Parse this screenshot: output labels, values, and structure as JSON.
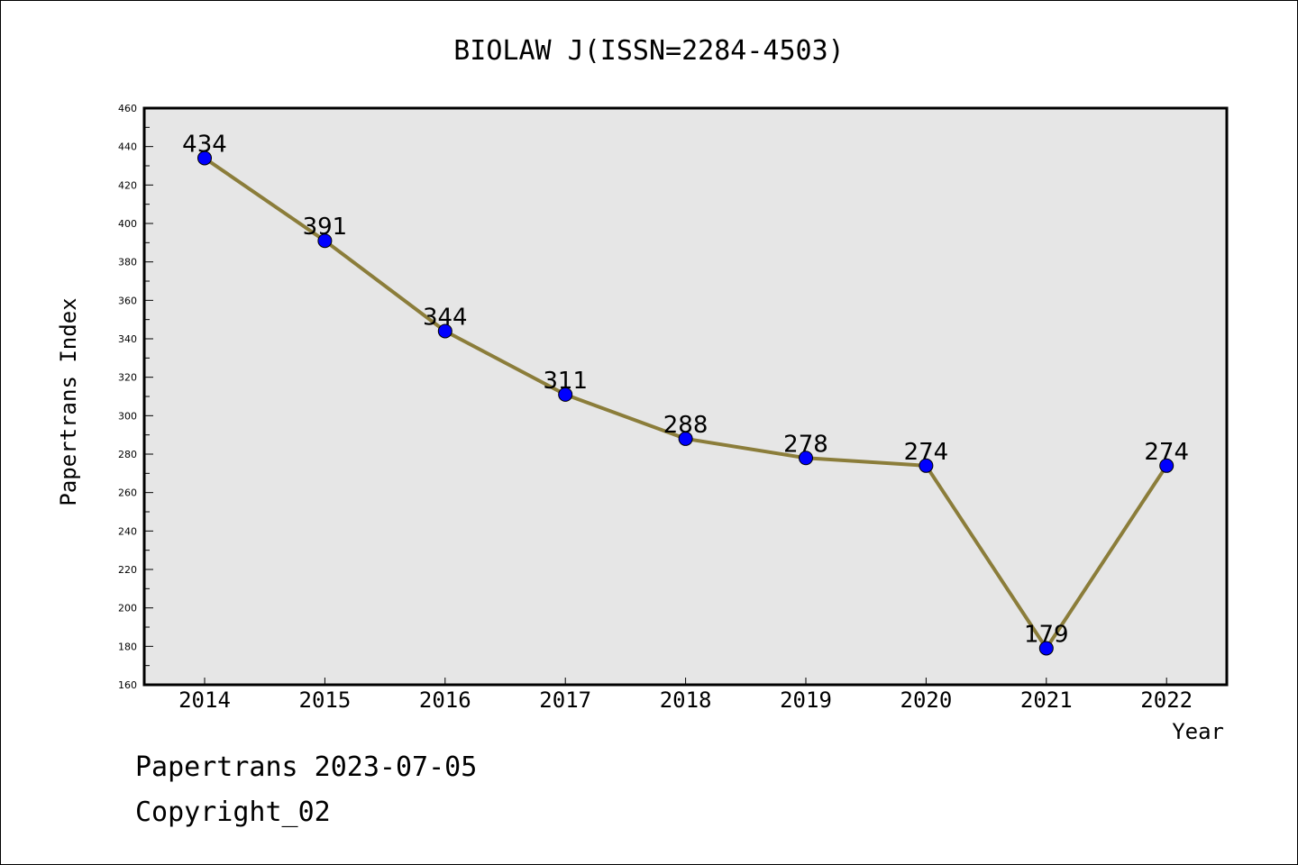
{
  "chart_data": {
    "type": "line",
    "title": "BIOLAW J(ISSN=2284-4503)",
    "xlabel": "Year",
    "ylabel": "Papertrans Index",
    "categories": [
      "2014",
      "2015",
      "2016",
      "2017",
      "2018",
      "2019",
      "2020",
      "2021",
      "2022"
    ],
    "series": [
      {
        "values": [
          434,
          391,
          344,
          311,
          288,
          278,
          274,
          179,
          274
        ]
      }
    ],
    "ylim": [
      160,
      460
    ],
    "yticks": [
      160,
      180,
      200,
      220,
      240,
      260,
      280,
      300,
      320,
      340,
      360,
      380,
      400,
      420,
      440,
      460
    ],
    "grid": false,
    "legend": "none",
    "colors": {
      "line": "#8B7D3A",
      "marker": "#0000FF",
      "plot_bg": "#E6E6E6"
    }
  },
  "footer": {
    "line1": "Papertrans 2023-07-05",
    "line2": "Copyright_02"
  }
}
